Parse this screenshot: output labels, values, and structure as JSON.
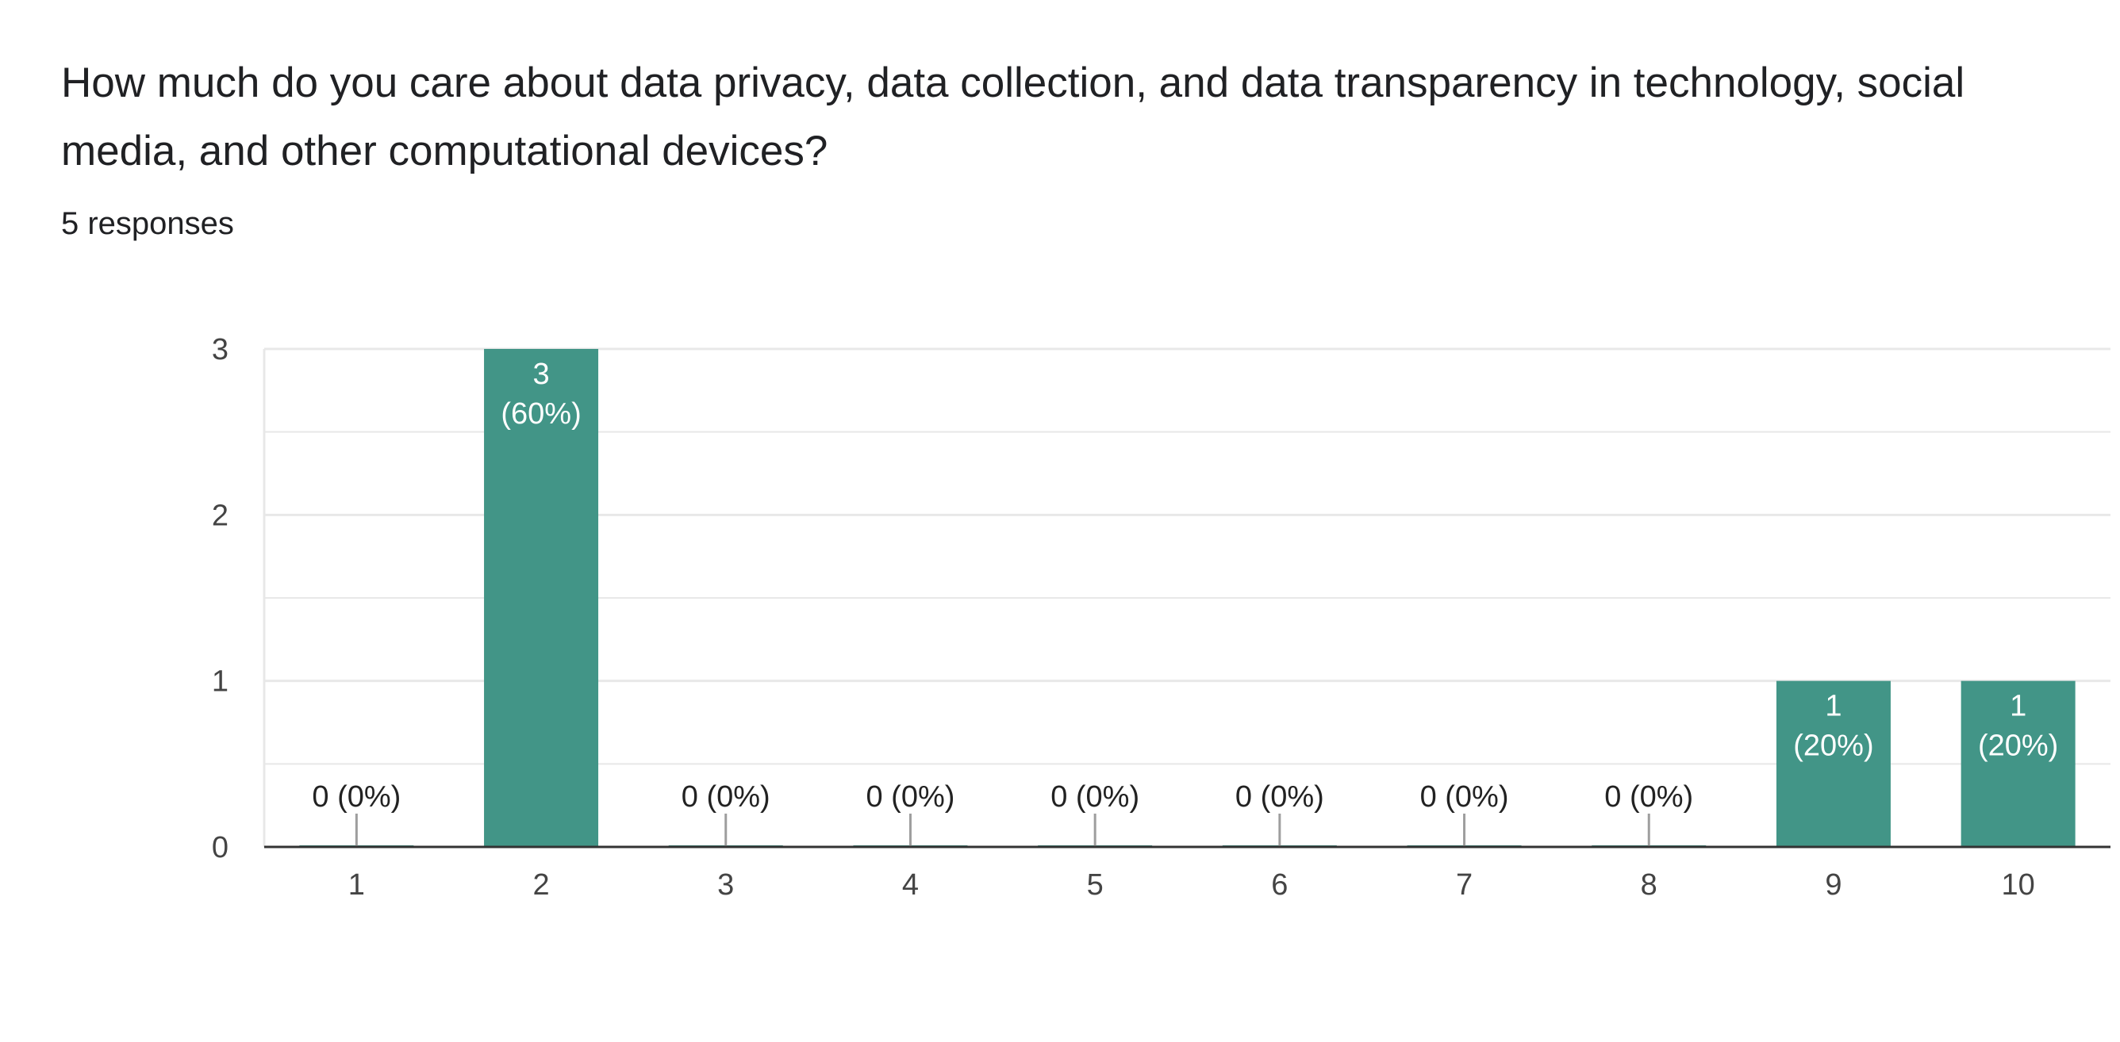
{
  "question": {
    "title": "How much do you care about data privacy, data collection, and data transparency in technology, social media, and other computational devices?",
    "responses_count": "5 responses"
  },
  "colors": {
    "bar": "#429587",
    "grid": "#e8e8e8",
    "baseline": "#333333",
    "leader": "#9e9e9e"
  },
  "chart_data": {
    "type": "bar",
    "categories": [
      "1",
      "2",
      "3",
      "4",
      "5",
      "6",
      "7",
      "8",
      "9",
      "10"
    ],
    "values": [
      0,
      3,
      0,
      0,
      0,
      0,
      0,
      0,
      1,
      1
    ],
    "data_labels": [
      "0 (0%)",
      "3 (60%)",
      "0 (0%)",
      "0 (0%)",
      "0 (0%)",
      "0 (0%)",
      "0 (0%)",
      "0 (0%)",
      "1 (20%)",
      "1 (20%)"
    ],
    "ylim": [
      0,
      3
    ],
    "yticks": [
      "0",
      "1",
      "2",
      "3"
    ],
    "grid": true,
    "title": "",
    "xlabel": "",
    "ylabel": ""
  }
}
